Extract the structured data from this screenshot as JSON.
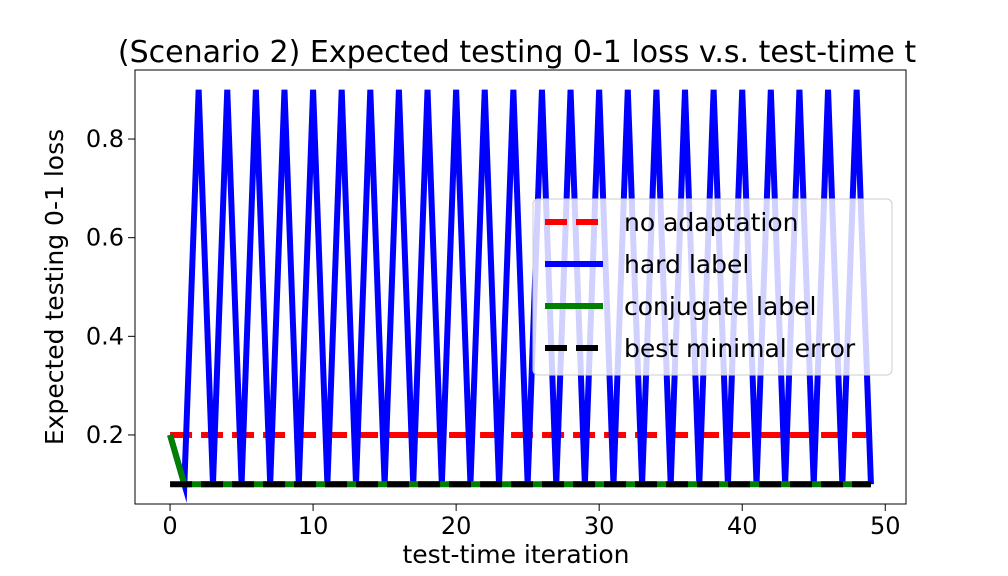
{
  "chart_data": {
    "type": "line",
    "title": "(Scenario 2) Expected testing 0-1 loss  v.s. test-time t",
    "xlabel": "test-time iteration",
    "ylabel": "Expected testing 0-1 loss",
    "xlim": [
      -2.45,
      51.45
    ],
    "ylim": [
      0.06,
      0.94
    ],
    "xticks": [
      0,
      10,
      20,
      30,
      40,
      50
    ],
    "xtick_labels": [
      "0",
      "10",
      "20",
      "30",
      "40",
      "50"
    ],
    "yticks": [
      0.2,
      0.4,
      0.6,
      0.8
    ],
    "ytick_labels": [
      "0.2",
      "0.4",
      "0.6",
      "0.8"
    ],
    "grid": false,
    "legend_position": "center-right",
    "series": [
      {
        "name": "no adaptation",
        "color": "#ff0000",
        "style": "dashed",
        "x": [
          0,
          49
        ],
        "y": [
          0.2,
          0.2
        ]
      },
      {
        "name": "hard label",
        "color": "#0000ff",
        "style": "solid",
        "x": [
          0,
          1,
          2,
          3,
          4,
          5,
          6,
          7,
          8,
          9,
          10,
          11,
          12,
          13,
          14,
          15,
          16,
          17,
          18,
          19,
          20,
          21,
          22,
          23,
          24,
          25,
          26,
          27,
          28,
          29,
          30,
          31,
          32,
          33,
          34,
          35,
          36,
          37,
          38,
          39,
          40,
          41,
          42,
          43,
          44,
          45,
          46,
          47,
          48,
          49
        ],
        "y": [
          0.2,
          0.1,
          0.9,
          0.1,
          0.9,
          0.1,
          0.9,
          0.1,
          0.9,
          0.1,
          0.9,
          0.1,
          0.9,
          0.1,
          0.9,
          0.1,
          0.9,
          0.1,
          0.9,
          0.1,
          0.9,
          0.1,
          0.9,
          0.1,
          0.9,
          0.1,
          0.9,
          0.1,
          0.9,
          0.1,
          0.9,
          0.1,
          0.9,
          0.1,
          0.9,
          0.1,
          0.9,
          0.1,
          0.9,
          0.1,
          0.9,
          0.1,
          0.9,
          0.1,
          0.9,
          0.1,
          0.9,
          0.1,
          0.9,
          0.1
        ]
      },
      {
        "name": "conjugate label",
        "color": "#008000",
        "style": "solid",
        "x": [
          0,
          1,
          2,
          3,
          4,
          5,
          6,
          7,
          8,
          9,
          10,
          11,
          12,
          13,
          14,
          15,
          16,
          17,
          18,
          19,
          20,
          21,
          22,
          23,
          24,
          25,
          26,
          27,
          28,
          29,
          30,
          31,
          32,
          33,
          34,
          35,
          36,
          37,
          38,
          39,
          40,
          41,
          42,
          43,
          44,
          45,
          46,
          47,
          48,
          49
        ],
        "y": [
          0.2,
          0.1,
          0.1,
          0.1,
          0.1,
          0.1,
          0.1,
          0.1,
          0.1,
          0.1,
          0.1,
          0.1,
          0.1,
          0.1,
          0.1,
          0.1,
          0.1,
          0.1,
          0.1,
          0.1,
          0.1,
          0.1,
          0.1,
          0.1,
          0.1,
          0.1,
          0.1,
          0.1,
          0.1,
          0.1,
          0.1,
          0.1,
          0.1,
          0.1,
          0.1,
          0.1,
          0.1,
          0.1,
          0.1,
          0.1,
          0.1,
          0.1,
          0.1,
          0.1,
          0.1,
          0.1,
          0.1,
          0.1,
          0.1,
          0.1
        ]
      },
      {
        "name": "best minimal error",
        "color": "#000000",
        "style": "dashed",
        "x": [
          0,
          49
        ],
        "y": [
          0.1,
          0.1
        ]
      }
    ]
  }
}
